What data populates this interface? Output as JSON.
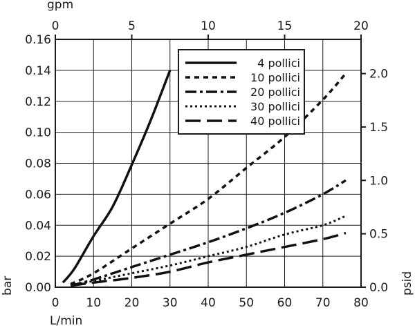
{
  "chart_data": {
    "type": "line",
    "title": "",
    "x_bottom": {
      "label": "L/min",
      "ticks": [
        0,
        10,
        20,
        30,
        40,
        50,
        60,
        70,
        80
      ],
      "range": [
        0,
        80
      ]
    },
    "x_top": {
      "label": "gpm",
      "ticks": [
        0,
        5,
        10,
        15,
        20
      ],
      "range": [
        0,
        20
      ]
    },
    "y_left": {
      "label": "bar",
      "ticks": [
        "0.00",
        "0.02",
        "0.04",
        "0.06",
        "0.08",
        "0.10",
        "0.12",
        "0.14",
        "0.16"
      ],
      "range": [
        0,
        0.16
      ]
    },
    "y_right": {
      "label": "psid",
      "ticks": [
        "0.0",
        "0.5",
        "1.0",
        "1.5",
        "2.0"
      ]
    },
    "grid": true,
    "legend_position": "top-right",
    "series": [
      {
        "name": "4 pollici",
        "dash": "solid",
        "x": [
          2,
          5,
          10,
          15,
          20,
          25,
          30
        ],
        "y": [
          0.003,
          0.012,
          0.033,
          0.052,
          0.079,
          0.108,
          0.14
        ]
      },
      {
        "name": "10 pollici",
        "dash": "short",
        "x": [
          4,
          10,
          20,
          30,
          40,
          50,
          60,
          70,
          76
        ],
        "y": [
          0.002,
          0.009,
          0.025,
          0.041,
          0.057,
          0.077,
          0.097,
          0.121,
          0.138
        ]
      },
      {
        "name": "20 pollici",
        "dash": "dashdot",
        "x": [
          4,
          10,
          20,
          30,
          40,
          50,
          60,
          70,
          76
        ],
        "y": [
          0.001,
          0.005,
          0.013,
          0.021,
          0.029,
          0.038,
          0.048,
          0.06,
          0.069
        ]
      },
      {
        "name": "30 pollici",
        "dash": "dotted",
        "x": [
          4,
          10,
          20,
          30,
          40,
          50,
          60,
          70,
          76
        ],
        "y": [
          0.001,
          0.004,
          0.009,
          0.014,
          0.02,
          0.026,
          0.034,
          0.04,
          0.046
        ]
      },
      {
        "name": "40 pollici",
        "dash": "long",
        "x": [
          4,
          10,
          20,
          30,
          40,
          50,
          60,
          70,
          76
        ],
        "y": [
          0.001,
          0.003,
          0.006,
          0.01,
          0.016,
          0.021,
          0.026,
          0.031,
          0.035
        ]
      }
    ]
  }
}
